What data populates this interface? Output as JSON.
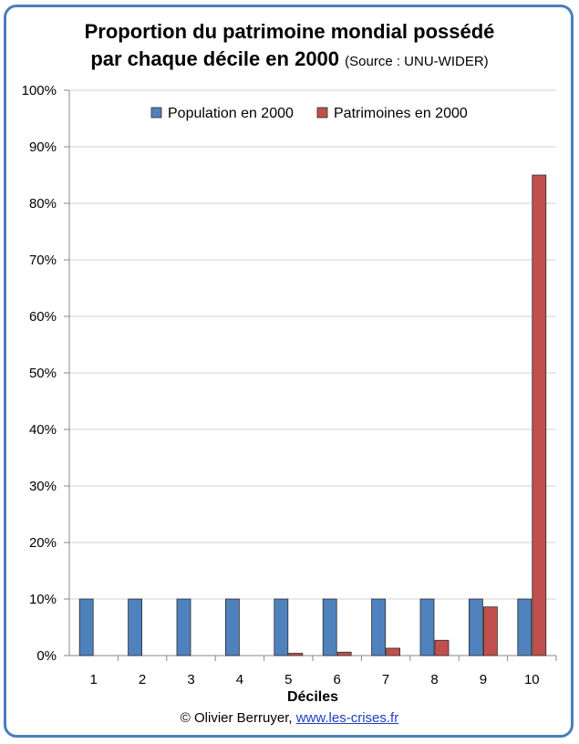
{
  "title": {
    "line1": "Proportion du patrimoine mondial possédé",
    "line2": "par chaque décile en 2000",
    "source": "(Source : UNU-WIDER)"
  },
  "footer": {
    "credit": "© Olivier Berruyer,",
    "link": "www.les-crises.fr"
  },
  "chart_data": {
    "type": "bar",
    "xlabel": "Déciles",
    "ylabel": "",
    "ylim": [
      0,
      100
    ],
    "yticks": [
      "0%",
      "10%",
      "20%",
      "30%",
      "40%",
      "50%",
      "60%",
      "70%",
      "80%",
      "90%",
      "100%"
    ],
    "categories": [
      "1",
      "2",
      "3",
      "4",
      "5",
      "6",
      "7",
      "8",
      "9",
      "10"
    ],
    "grid": true,
    "legend": "top",
    "series": [
      {
        "name": "Population en 2000",
        "color": "#4f81bd",
        "values": [
          10,
          10,
          10,
          10,
          10,
          10,
          10,
          10,
          10,
          10
        ]
      },
      {
        "name": "Patrimoines en 2000",
        "color": "#c0504d",
        "values": [
          0,
          0,
          0,
          0,
          0.4,
          0.6,
          1.3,
          2.7,
          8.6,
          85
        ]
      }
    ]
  }
}
